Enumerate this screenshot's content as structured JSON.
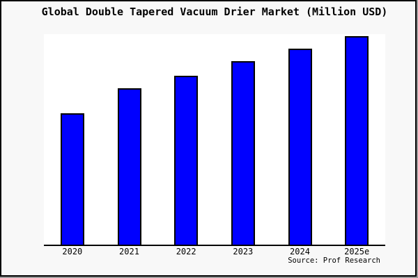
{
  "chart": {
    "title": "Global Double Tapered Vacuum Drier Market (Million USD)",
    "source": "Source: Prof Research"
  },
  "chart_data": {
    "type": "bar",
    "title": "Global Double Tapered Vacuum Drier Market (Million USD)",
    "categories": [
      "2020",
      "2021",
      "2022",
      "2023",
      "2024",
      "2025e"
    ],
    "values": [
      63,
      75,
      81,
      88,
      94,
      100
    ],
    "xlabel": "",
    "ylabel": "",
    "ylim": [
      0,
      101
    ],
    "grid": false,
    "legend": false,
    "y_axis_labels_shown": false,
    "annotation": "Source: Prof Research",
    "bar_color": "#0000ff",
    "bar_border_color": "#000000"
  },
  "colors": {
    "figure_background": "#f8f8f8",
    "plot_background": "#ffffff",
    "frame_border": "#000000",
    "frame_shadow": "#9a9a9a",
    "bar_fill": "#0000ff",
    "text": "#000000"
  }
}
